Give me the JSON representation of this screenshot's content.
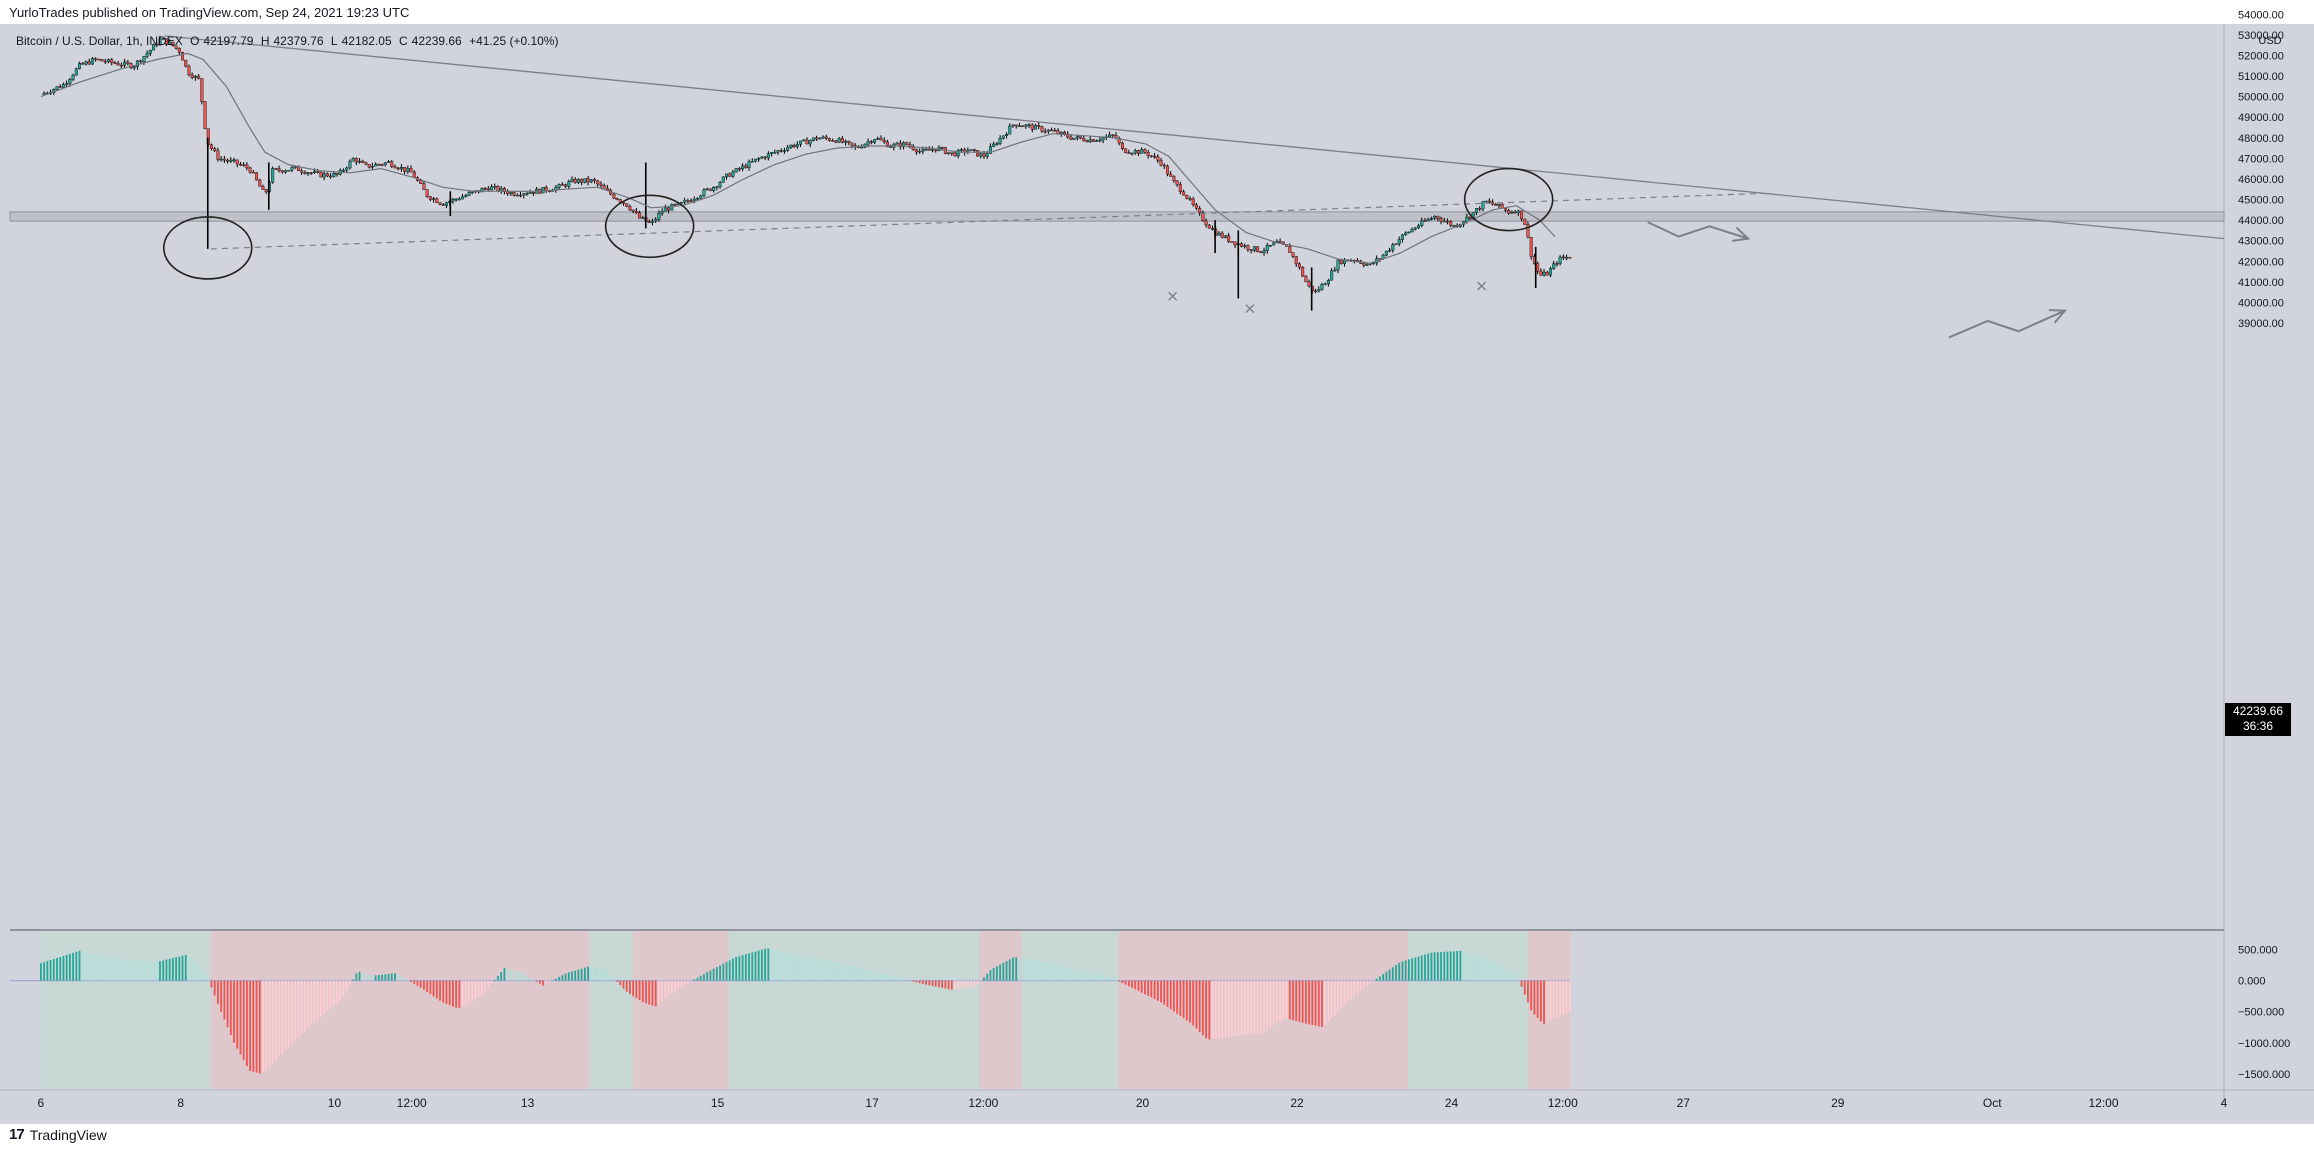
{
  "header": {
    "text": "YurloTrades published on TradingView.com, Sep 24, 2021 19:23 UTC"
  },
  "legend": {
    "symbol": "Bitcoin / U.S. Dollar, 1h, INDEX",
    "o_label": "O",
    "o": "42197.79",
    "h_label": "H",
    "h": "42379.76",
    "l_label": "L",
    "l": "42182.05",
    "c_label": "C",
    "c": "42239.66",
    "change": "+41.25 (+0.10%)"
  },
  "price_badge": {
    "price": "42239.66",
    "countdown": "36:36"
  },
  "footer": {
    "logo": "17",
    "brand": "TradingView"
  },
  "colors": {
    "background": "#d1d4dc",
    "up": "#26a69a",
    "down": "#ef5350",
    "hist_up": "#26a69a",
    "hist_up_light": "#b2dfdb",
    "hist_down": "#ef5350",
    "hist_down_light": "#ffcdd2",
    "zone_bull": "#c8d8d4",
    "zone_bear": "#dec8cc",
    "drawing": "#808080"
  },
  "chart_data": [
    {
      "type": "candlestick",
      "symbol": "Bitcoin / U.S. Dollar, 1h, INDEX",
      "currency": "USD",
      "ylim": [
        38200,
        54600
      ],
      "y_ticks": [
        "54000.00",
        "53000.00",
        "52000.00",
        "51000.00",
        "50000.00",
        "49000.00",
        "48000.00",
        "47000.00",
        "46000.00",
        "45000.00",
        "44000.00",
        "43000.00",
        "42000.00",
        "41000.00",
        "40000.00",
        "39000.00"
      ],
      "x_ticks": [
        {
          "t": 0.0,
          "label": "6"
        },
        {
          "t": 1.81,
          "label": "8"
        },
        {
          "t": 3.8,
          "label": "10"
        },
        {
          "t": 4.8,
          "label": "12:00"
        },
        {
          "t": 6.3,
          "label": "13"
        },
        {
          "t": 8.76,
          "label": "15"
        },
        {
          "t": 10.76,
          "label": "17"
        },
        {
          "t": 12.2,
          "label": "12:00"
        },
        {
          "t": 14.26,
          "label": "20"
        },
        {
          "t": 16.26,
          "label": "22"
        },
        {
          "t": 18.26,
          "label": "24"
        },
        {
          "t": 19.7,
          "label": "12:00"
        },
        {
          "t": 21.26,
          "label": "27"
        },
        {
          "t": 23.26,
          "label": "29"
        },
        {
          "t": 25.26,
          "label": "Oct"
        },
        {
          "t": 26.7,
          "label": "12:00"
        },
        {
          "t": 28.26,
          "label": "4"
        }
      ],
      "x_unit_note": "days since Sep 6, 00:00",
      "price_path": [
        [
          0.0,
          50100
        ],
        [
          0.3,
          50600
        ],
        [
          0.5,
          51500
        ],
        [
          0.7,
          51800
        ],
        [
          1.0,
          51600
        ],
        [
          1.2,
          51500
        ],
        [
          1.4,
          52200
        ],
        [
          1.55,
          52800
        ],
        [
          1.7,
          52500
        ],
        [
          1.8,
          52200
        ],
        [
          1.9,
          51200
        ],
        [
          2.05,
          50800
        ],
        [
          2.15,
          47800
        ],
        [
          2.3,
          47000
        ],
        [
          2.5,
          46800
        ],
        [
          2.7,
          46500
        ],
        [
          2.9,
          45200
        ],
        [
          3.0,
          46400
        ],
        [
          3.3,
          46500
        ],
        [
          3.6,
          46200
        ],
        [
          3.85,
          46200
        ],
        [
          4.05,
          47000
        ],
        [
          4.2,
          46600
        ],
        [
          4.5,
          46800
        ],
        [
          4.8,
          46300
        ],
        [
          5.0,
          45200
        ],
        [
          5.2,
          44800
        ],
        [
          5.5,
          45200
        ],
        [
          5.8,
          45600
        ],
        [
          6.1,
          45300
        ],
        [
          6.4,
          45400
        ],
        [
          6.7,
          45600
        ],
        [
          6.9,
          45900
        ],
        [
          7.15,
          45900
        ],
        [
          7.4,
          45200
        ],
        [
          7.6,
          44700
        ],
        [
          7.75,
          44100
        ],
        [
          7.9,
          43800
        ],
        [
          8.05,
          44500
        ],
        [
          8.3,
          44800
        ],
        [
          8.5,
          45200
        ],
        [
          8.7,
          45600
        ],
        [
          8.9,
          46200
        ],
        [
          9.1,
          46600
        ],
        [
          9.3,
          47000
        ],
        [
          9.5,
          47300
        ],
        [
          9.7,
          47600
        ],
        [
          9.9,
          47800
        ],
        [
          10.05,
          48000
        ],
        [
          10.3,
          47900
        ],
        [
          10.55,
          47500
        ],
        [
          10.8,
          48000
        ],
        [
          11.0,
          47600
        ],
        [
          11.2,
          47700
        ],
        [
          11.4,
          47300
        ],
        [
          11.6,
          47500
        ],
        [
          11.8,
          47200
        ],
        [
          12.0,
          47400
        ],
        [
          12.2,
          47100
        ],
        [
          12.4,
          47900
        ],
        [
          12.6,
          48700
        ],
        [
          12.85,
          48500
        ],
        [
          13.1,
          48300
        ],
        [
          13.35,
          48000
        ],
        [
          13.6,
          47900
        ],
        [
          13.9,
          48100
        ],
        [
          14.0,
          47400
        ],
        [
          14.3,
          47300
        ],
        [
          14.5,
          46800
        ],
        [
          14.65,
          45900
        ],
        [
          14.8,
          45300
        ],
        [
          14.95,
          44500
        ],
        [
          15.05,
          44000
        ],
        [
          15.2,
          43400
        ],
        [
          15.4,
          43000
        ],
        [
          15.6,
          42700
        ],
        [
          15.8,
          42500
        ],
        [
          16.0,
          42900
        ],
        [
          16.15,
          42600
        ],
        [
          16.3,
          41600
        ],
        [
          16.4,
          40800
        ],
        [
          16.5,
          40500
        ],
        [
          16.65,
          41100
        ],
        [
          16.8,
          42000
        ],
        [
          17.0,
          42100
        ],
        [
          17.2,
          41800
        ],
        [
          17.35,
          42200
        ],
        [
          17.5,
          42800
        ],
        [
          17.65,
          43300
        ],
        [
          17.85,
          43800
        ],
        [
          18.05,
          44200
        ],
        [
          18.3,
          43700
        ],
        [
          18.5,
          44200
        ],
        [
          18.7,
          44900
        ],
        [
          18.85,
          44700
        ],
        [
          19.0,
          44400
        ],
        [
          19.1,
          44500
        ],
        [
          19.2,
          44000
        ],
        [
          19.3,
          42200
        ],
        [
          19.4,
          41300
        ],
        [
          19.5,
          41400
        ],
        [
          19.65,
          42100
        ],
        [
          19.8,
          42240
        ]
      ],
      "wicks": [
        {
          "t": 2.16,
          "low": 42600,
          "high": 48000
        },
        {
          "t": 2.95,
          "low": 44500,
          "high": 46800
        },
        {
          "t": 5.3,
          "low": 44200,
          "high": 45400
        },
        {
          "t": 7.83,
          "low": 43600,
          "high": 46800
        },
        {
          "t": 15.2,
          "low": 42400,
          "high": 44000
        },
        {
          "t": 15.5,
          "low": 40200,
          "high": 43500
        },
        {
          "t": 16.45,
          "low": 39600,
          "high": 41700
        },
        {
          "t": 19.35,
          "low": 40700,
          "high": 42700
        }
      ],
      "ma_path": [
        [
          0.0,
          50000
        ],
        [
          0.5,
          50700
        ],
        [
          1.0,
          51300
        ],
        [
          1.5,
          51800
        ],
        [
          1.9,
          52100
        ],
        [
          2.1,
          51800
        ],
        [
          2.4,
          50500
        ],
        [
          2.7,
          48500
        ],
        [
          2.9,
          47300
        ],
        [
          3.2,
          46700
        ],
        [
          3.6,
          46400
        ],
        [
          4.0,
          46300
        ],
        [
          4.4,
          46500
        ],
        [
          4.8,
          46100
        ],
        [
          5.2,
          45600
        ],
        [
          5.6,
          45400
        ],
        [
          6.0,
          45400
        ],
        [
          6.4,
          45400
        ],
        [
          6.8,
          45500
        ],
        [
          7.2,
          45600
        ],
        [
          7.6,
          45100
        ],
        [
          7.9,
          44600
        ],
        [
          8.3,
          44700
        ],
        [
          8.7,
          45200
        ],
        [
          9.1,
          46000
        ],
        [
          9.5,
          46700
        ],
        [
          9.9,
          47200
        ],
        [
          10.3,
          47500
        ],
        [
          10.7,
          47600
        ],
        [
          11.1,
          47600
        ],
        [
          11.5,
          47500
        ],
        [
          11.9,
          47300
        ],
        [
          12.3,
          47300
        ],
        [
          12.7,
          47800
        ],
        [
          13.1,
          48200
        ],
        [
          13.5,
          48100
        ],
        [
          13.9,
          48000
        ],
        [
          14.3,
          47700
        ],
        [
          14.6,
          47100
        ],
        [
          14.9,
          45800
        ],
        [
          15.2,
          44500
        ],
        [
          15.6,
          43400
        ],
        [
          16.0,
          42900
        ],
        [
          16.4,
          42600
        ],
        [
          16.8,
          42100
        ],
        [
          17.2,
          41900
        ],
        [
          17.6,
          42400
        ],
        [
          18.0,
          43200
        ],
        [
          18.4,
          43800
        ],
        [
          18.8,
          44500
        ],
        [
          19.1,
          44700
        ],
        [
          19.4,
          44000
        ],
        [
          19.6,
          43200
        ]
      ],
      "support_zone": {
        "top": 44400,
        "bottom": 43950
      },
      "annotations": {
        "downtrend_line": [
          [
            1.6,
            52950
          ],
          [
            28.26,
            43100
          ]
        ],
        "dashed_line": [
          [
            2.2,
            42600
          ],
          [
            22.3,
            45300
          ]
        ],
        "ellipses": [
          {
            "t": 2.16,
            "price": 42650
          },
          {
            "t": 7.88,
            "price": 43700
          },
          {
            "t": 19.0,
            "price": 45000
          }
        ],
        "crosses": [
          [
            14.65,
            40300
          ],
          [
            15.65,
            39700
          ],
          [
            18.65,
            40800
          ]
        ],
        "bearish_arrow": [
          [
            20.8,
            43900
          ],
          [
            21.2,
            43200
          ],
          [
            21.6,
            43700
          ],
          [
            22.1,
            43100
          ]
        ],
        "bullish_arrow": [
          [
            24.7,
            38300
          ],
          [
            25.2,
            39100
          ],
          [
            25.6,
            38600
          ],
          [
            26.2,
            39600
          ]
        ]
      }
    },
    {
      "type": "histogram",
      "y_ticks": [
        "500.000",
        "0.000",
        "−500.000",
        "−1000.000",
        "−1500.000"
      ],
      "ylim": [
        -1720,
        780
      ],
      "x_range": [
        0.0,
        19.8
      ],
      "path": [
        [
          0.0,
          280
        ],
        [
          0.5,
          480
        ],
        [
          1.0,
          350
        ],
        [
          1.5,
          300
        ],
        [
          1.9,
          420
        ],
        [
          2.15,
          80
        ],
        [
          2.3,
          -400
        ],
        [
          2.5,
          -1000
        ],
        [
          2.7,
          -1450
        ],
        [
          2.85,
          -1500
        ],
        [
          3.1,
          -1200
        ],
        [
          3.5,
          -700
        ],
        [
          3.9,
          -300
        ],
        [
          4.1,
          150
        ],
        [
          4.3,
          80
        ],
        [
          4.6,
          120
        ],
        [
          4.9,
          -100
        ],
        [
          5.2,
          -350
        ],
        [
          5.4,
          -450
        ],
        [
          5.7,
          -250
        ],
        [
          6.0,
          200
        ],
        [
          6.2,
          150
        ],
        [
          6.5,
          -80
        ],
        [
          6.8,
          120
        ],
        [
          7.1,
          230
        ],
        [
          7.3,
          180
        ],
        [
          7.6,
          -200
        ],
        [
          7.8,
          -350
        ],
        [
          7.95,
          -420
        ],
        [
          8.3,
          -100
        ],
        [
          8.6,
          120
        ],
        [
          9.0,
          380
        ],
        [
          9.4,
          520
        ],
        [
          9.8,
          400
        ],
        [
          10.2,
          320
        ],
        [
          10.6,
          200
        ],
        [
          11.0,
          80
        ],
        [
          11.4,
          -50
        ],
        [
          11.8,
          -150
        ],
        [
          12.1,
          -100
        ],
        [
          12.3,
          180
        ],
        [
          12.6,
          380
        ],
        [
          13.0,
          300
        ],
        [
          13.4,
          180
        ],
        [
          13.8,
          80
        ],
        [
          14.1,
          -100
        ],
        [
          14.5,
          -350
        ],
        [
          14.9,
          -700
        ],
        [
          15.1,
          -950
        ],
        [
          15.4,
          -900
        ],
        [
          15.8,
          -850
        ],
        [
          16.1,
          -600
        ],
        [
          16.4,
          -700
        ],
        [
          16.6,
          -750
        ],
        [
          16.9,
          -350
        ],
        [
          17.3,
          40
        ],
        [
          17.6,
          300
        ],
        [
          18.0,
          450
        ],
        [
          18.4,
          480
        ],
        [
          18.8,
          300
        ],
        [
          19.1,
          100
        ],
        [
          19.3,
          -500
        ],
        [
          19.45,
          -700
        ],
        [
          19.6,
          -600
        ],
        [
          19.8,
          -520
        ]
      ],
      "zones": [
        {
          "from": 0.0,
          "to": 2.2,
          "kind": "bull"
        },
        {
          "from": 2.2,
          "to": 7.1,
          "kind": "bear"
        },
        {
          "from": 7.1,
          "to": 7.66,
          "kind": "bull"
        },
        {
          "from": 7.66,
          "to": 8.9,
          "kind": "bear"
        },
        {
          "from": 8.9,
          "to": 12.15,
          "kind": "bull"
        },
        {
          "from": 12.15,
          "to": 12.7,
          "kind": "bear"
        },
        {
          "from": 12.7,
          "to": 13.95,
          "kind": "bull"
        },
        {
          "from": 13.95,
          "to": 17.7,
          "kind": "bear"
        },
        {
          "from": 17.7,
          "to": 19.25,
          "kind": "bull"
        },
        {
          "from": 19.25,
          "to": 19.8,
          "kind": "bear"
        }
      ]
    }
  ]
}
